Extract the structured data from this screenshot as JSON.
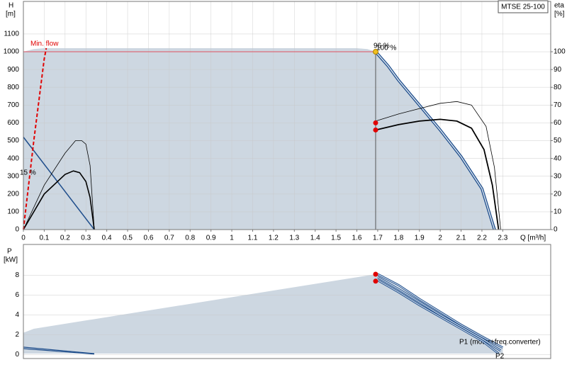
{
  "chart_data": [
    {
      "type": "line",
      "title": "MTSE 25-100",
      "y_label": "H",
      "y_unit": "[m]",
      "y2_label": "eta",
      "y2_unit": "[%]",
      "x_label": "Q [m³/h]",
      "xlim": [
        0,
        2.53
      ],
      "xticks": [
        0,
        0.1,
        0.2,
        0.3,
        0.4,
        0.5,
        0.6,
        0.7,
        0.8,
        0.9,
        1,
        1.1,
        1.2,
        1.3,
        1.4,
        1.5,
        1.6,
        1.7,
        1.8,
        1.9,
        2,
        2.1,
        2.2,
        2.3
      ],
      "ylim": [
        0,
        1283
      ],
      "yticks": [
        0,
        100,
        200,
        300,
        400,
        500,
        600,
        700,
        800,
        900,
        1000,
        1100
      ],
      "y2lim": [
        0,
        128.3
      ],
      "y2ticks": [
        0,
        10,
        20,
        30,
        40,
        50,
        60,
        70,
        80,
        90,
        100
      ],
      "grid": true,
      "annotations": [
        {
          "text": "Min. flow",
          "color": "#e00000"
        },
        {
          "text": "96 %",
          "color": "#000000"
        },
        {
          "text": "100 %",
          "color": "#000000"
        },
        {
          "text": "15 %",
          "color": "#000000"
        }
      ],
      "series": [
        {
          "x": [
            0,
            0.05,
            0.1,
            1.6,
            1.65,
            1.69,
            1.8,
            1.9,
            2.0,
            2.1,
            2.2,
            2.27,
            0
          ],
          "values": [
            1000,
            1015,
            1020,
            1020,
            1015,
            1000,
            840,
            700,
            560,
            410,
            230,
            0,
            0
          ],
          "color": "#cdd7e1",
          "fill": true
        },
        {
          "x": [
            0,
            1.69
          ],
          "values": [
            1000,
            1000
          ],
          "color": "#e05060",
          "width": 1
        },
        {
          "x": [
            1.69,
            1.69
          ],
          "values": [
            0,
            1000
          ],
          "color": "#555555",
          "width": 1
        },
        {
          "x": [
            0,
            0.34
          ],
          "values": [
            520,
            0
          ],
          "color": "#1f4e8c",
          "width": 1.5
        },
        {
          "x": [
            1.69,
            1.75,
            1.8,
            1.9,
            2.0,
            2.1,
            2.2,
            2.26
          ],
          "values": [
            1000,
            920,
            840,
            700,
            560,
            410,
            230,
            0
          ],
          "color": "#1f4e8c",
          "width": 4,
          "outline": true
        },
        {
          "x": [
            0,
            0.1,
            0.2,
            0.25,
            0.28,
            0.3,
            0.32,
            0.34
          ],
          "values": [
            0,
            25,
            43,
            50,
            50,
            48,
            36,
            0
          ],
          "color": "#000000",
          "width": 0.8,
          "axis": "y2"
        },
        {
          "x": [
            0,
            0.1,
            0.2,
            0.24,
            0.27,
            0.3,
            0.32,
            0.34
          ],
          "values": [
            0,
            20,
            31,
            33,
            32,
            27,
            18,
            0
          ],
          "color": "#000000",
          "width": 1.6,
          "axis": "y2"
        },
        {
          "x": [
            1.69,
            1.8,
            1.9,
            2.0,
            2.08,
            2.15,
            2.22,
            2.26,
            2.29
          ],
          "values": [
            61,
            65,
            68,
            71,
            72,
            70,
            58,
            35,
            0
          ],
          "color": "#000000",
          "width": 0.8,
          "axis": "y2"
        },
        {
          "x": [
            1.69,
            1.8,
            1.9,
            2.0,
            2.08,
            2.15,
            2.21,
            2.25,
            2.28
          ],
          "values": [
            56,
            59,
            61,
            62,
            61,
            57,
            45,
            25,
            0
          ],
          "color": "#000000",
          "width": 1.8,
          "axis": "y2"
        },
        {
          "x": [
            0,
            0.05,
            0.1,
            0.11
          ],
          "values": [
            0,
            500,
            960,
            1020
          ],
          "color": "#e00000",
          "width": 2,
          "dash": true
        },
        {
          "x": [
            1.69,
            1.69
          ],
          "values": [
            60,
            56
          ],
          "color": "#e00000",
          "marker": true,
          "axis": "y2"
        },
        {
          "x": [
            1.69
          ],
          "values": [
            1000
          ],
          "color": "#f0c020",
          "marker": true
        }
      ]
    },
    {
      "type": "line",
      "y_label": "P",
      "y_unit": "[kW]",
      "xlim": [
        0,
        2.53
      ],
      "ylim": [
        -0.4,
        11.1
      ],
      "yticks": [
        0,
        2,
        4,
        6,
        8
      ],
      "grid": true,
      "series": [
        {
          "x": [
            0,
            0.05,
            1.69,
            1.8,
            2.0,
            2.2,
            2.3,
            2.3,
            0
          ],
          "values": [
            2.2,
            2.6,
            8.1,
            6.8,
            4.3,
            2.0,
            0.8,
            0.1,
            0.1
          ],
          "color": "#cdd7e1",
          "fill": true
        },
        {
          "x": [
            0,
            0.34
          ],
          "values": [
            0.75,
            0.1
          ],
          "color": "#1f4e8c",
          "width": 1.2
        },
        {
          "x": [
            0,
            0.34
          ],
          "values": [
            0.6,
            0.05
          ],
          "color": "#1f4e8c",
          "width": 1.2
        },
        {
          "name": "P1 (motor+freq.converter)",
          "x": [
            1.7,
            1.8,
            1.9,
            2.0,
            2.1,
            2.2,
            2.3
          ],
          "values": [
            8.1,
            7.0,
            5.6,
            4.3,
            3.0,
            1.8,
            0.7
          ],
          "color": "#1f4e8c",
          "width": 3,
          "outline": true
        },
        {
          "x": [
            1.7,
            1.8,
            1.9,
            2.0,
            2.1,
            2.2,
            2.29
          ],
          "values": [
            7.8,
            6.6,
            5.3,
            4.0,
            2.8,
            1.6,
            0.4
          ],
          "color": "#1f4e8c",
          "width": 3,
          "outline": true
        },
        {
          "name": "P2",
          "x": [
            1.7,
            1.8,
            1.9,
            2.0,
            2.1,
            2.2,
            2.28
          ],
          "values": [
            7.5,
            6.3,
            5.0,
            3.8,
            2.6,
            1.4,
            0.1
          ],
          "color": "#1f4e8c",
          "width": 3,
          "outline": true
        },
        {
          "x": [
            1.69,
            1.69
          ],
          "values": [
            8.1,
            7.4
          ],
          "color": "#e00000",
          "marker": true
        }
      ]
    }
  ]
}
